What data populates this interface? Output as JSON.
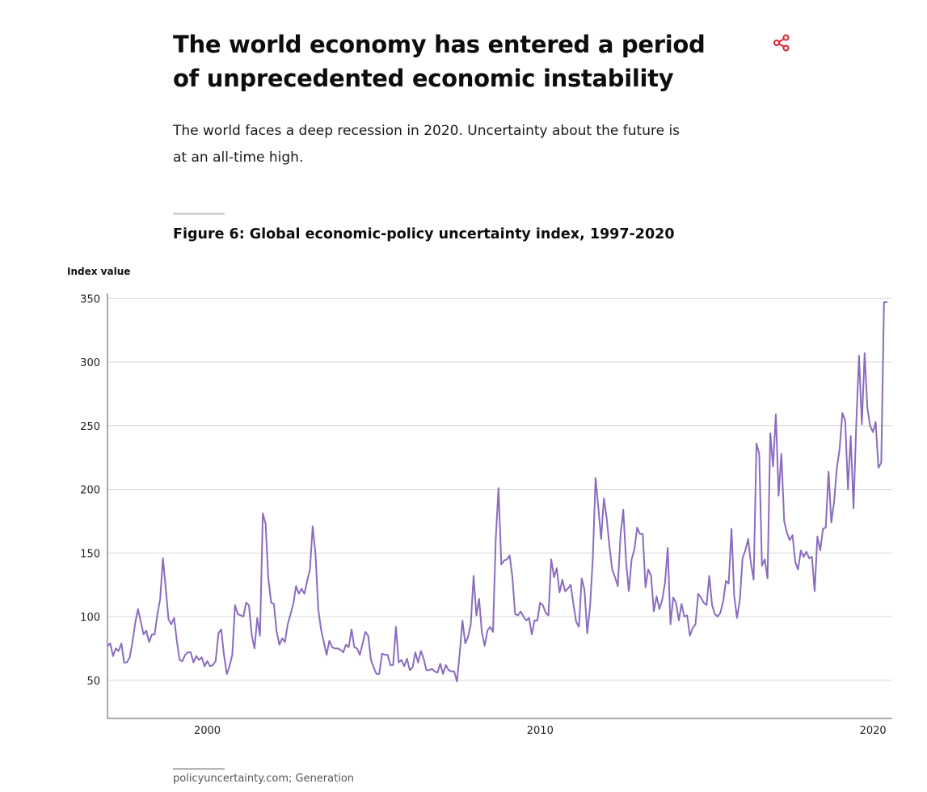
{
  "article": {
    "headline": "The world economy has entered a period of unprecedented economic instability",
    "lede": "The world faces a deep recession in 2020. Uncertainty about the future is at an all-time high.",
    "figure_title": "Figure 6: Global economic-policy uncertainty index, 1997-2020",
    "source": "policyuncertainty.com; Generation"
  },
  "share_icon": {
    "name": "share-icon",
    "color": "#d9232e"
  },
  "chart_data": {
    "type": "line",
    "title": "Figure 6: Global economic-policy uncertainty index, 1997-2020",
    "ylabel": "Index value",
    "xlabel": "",
    "ylim": [
      20,
      354
    ],
    "xlim": [
      1997.0,
      2020.58
    ],
    "yticks": [
      50,
      100,
      150,
      200,
      250,
      300,
      350
    ],
    "xticks": [
      {
        "value": 2000,
        "label": "2000"
      },
      {
        "value": 2010,
        "label": "2010"
      },
      {
        "value": 2020,
        "label": "2020"
      }
    ],
    "grid": "horizontal",
    "line_color": "#8a6cbf",
    "series": [
      {
        "name": "",
        "x_start": 1997.0,
        "step": 0.08333,
        "values": [
          77,
          79,
          69,
          75,
          73,
          79,
          64,
          64,
          68,
          80,
          95,
          106,
          96,
          86,
          89,
          80,
          86,
          86,
          102,
          114,
          146,
          122,
          98,
          94,
          99,
          81,
          66,
          65,
          70,
          72,
          72,
          64,
          69,
          66,
          68,
          61,
          65,
          61,
          62,
          65,
          87,
          90,
          70,
          55,
          61,
          70,
          109,
          102,
          101,
          100,
          111,
          109,
          86,
          75,
          99,
          85,
          181,
          173,
          130,
          111,
          110,
          88,
          78,
          83,
          80,
          94,
          102,
          110,
          124,
          118,
          122,
          118,
          128,
          137,
          171,
          149,
          106,
          90,
          80,
          70,
          81,
          76,
          75,
          75,
          74,
          72,
          78,
          76,
          90,
          76,
          75,
          70,
          79,
          88,
          85,
          66,
          60,
          55,
          55,
          71,
          70,
          70,
          62,
          62,
          92,
          64,
          66,
          61,
          67,
          58,
          60,
          72,
          64,
          73,
          67,
          58,
          58,
          59,
          57,
          56,
          63,
          55,
          62,
          58,
          57,
          57,
          49,
          71,
          97,
          79,
          84,
          94,
          132,
          101,
          114,
          88,
          77,
          89,
          92,
          88,
          161,
          201,
          141,
          144,
          145,
          148,
          131,
          102,
          101,
          104,
          100,
          97,
          99,
          86,
          97,
          97,
          111,
          109,
          103,
          101,
          145,
          131,
          138,
          119,
          129,
          120,
          122,
          125,
          110,
          96,
          92,
          130,
          121,
          87,
          108,
          146,
          209,
          185,
          161,
          193,
          177,
          155,
          137,
          131,
          124,
          164,
          184,
          143,
          120,
          145,
          153,
          170,
          165,
          165,
          123,
          137,
          132,
          104,
          116,
          106,
          113,
          126,
          154,
          94,
          115,
          111,
          97,
          110,
          100,
          101,
          85,
          91,
          94,
          118,
          115,
          111,
          109,
          132,
          109,
          102,
          100,
          103,
          112,
          128,
          126,
          169,
          116,
          99,
          113,
          146,
          152,
          161,
          142,
          129,
          236,
          228,
          140,
          145,
          130,
          244,
          218,
          259,
          195,
          228,
          175,
          166,
          160,
          164,
          143,
          137,
          152,
          147,
          151,
          146,
          147,
          120,
          163,
          152,
          169,
          170,
          214,
          174,
          190,
          217,
          232,
          260,
          254,
          200,
          242,
          185,
          252,
          305,
          251,
          307,
          264,
          250,
          245,
          253,
          217,
          221,
          347,
          347
        ]
      }
    ]
  }
}
